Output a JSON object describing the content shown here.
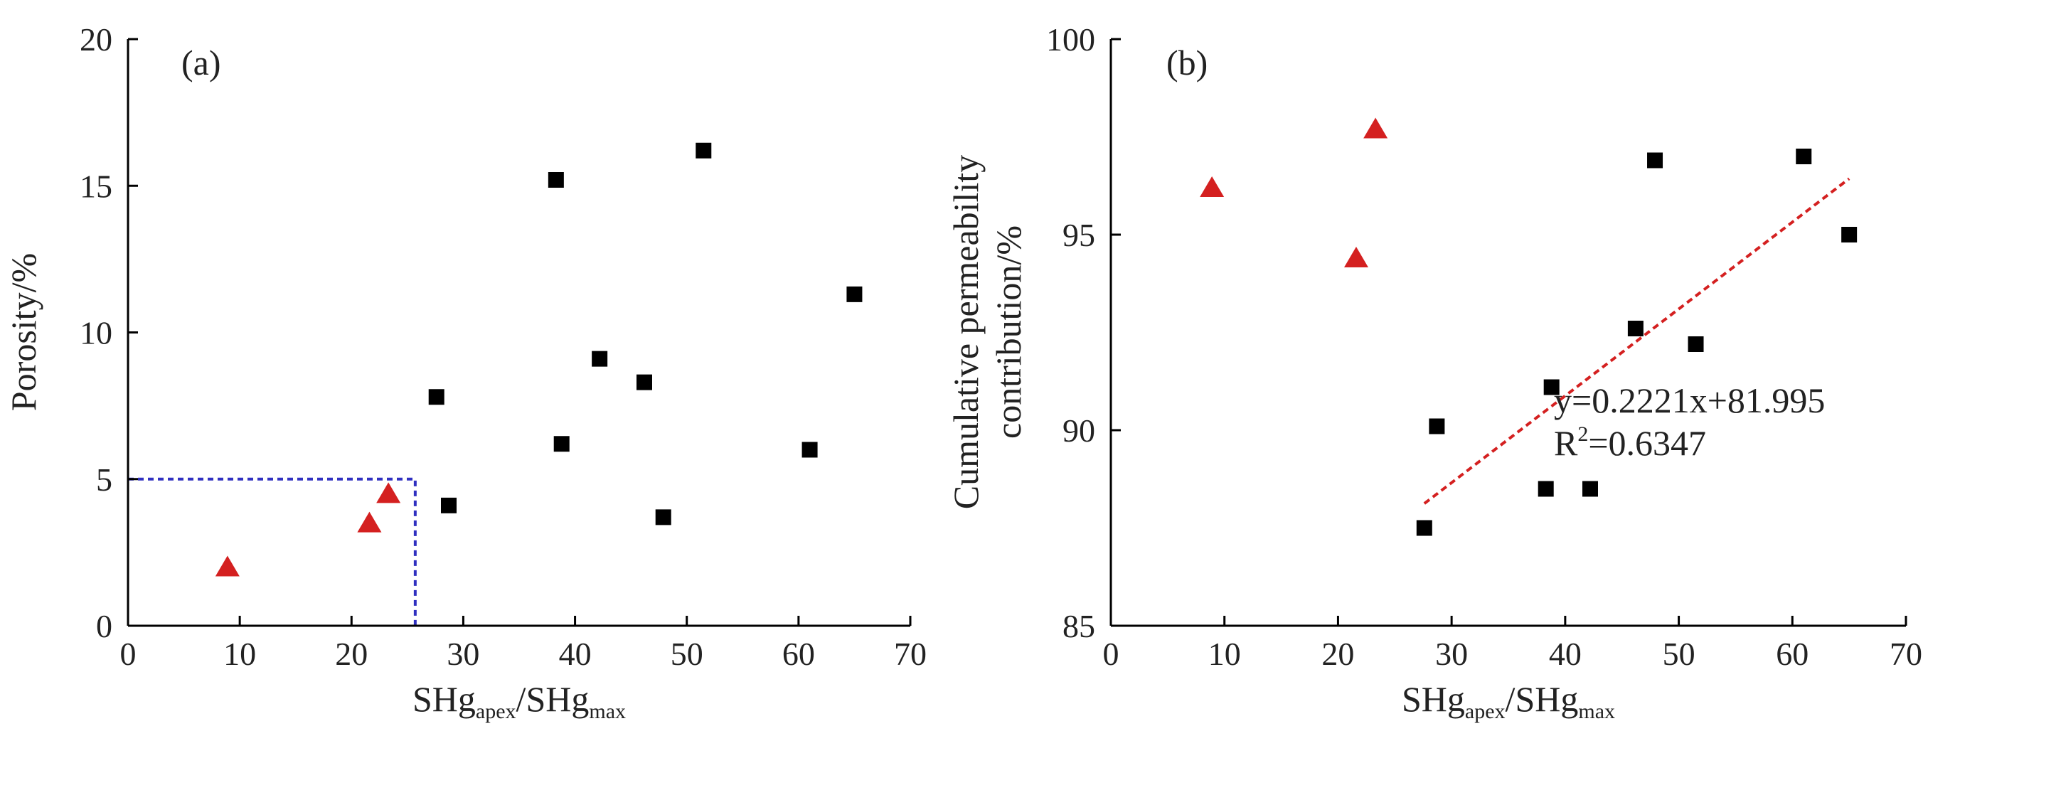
{
  "colors": {
    "square": "#000000",
    "triangle": "#d42020",
    "trendline": "#d42020",
    "cutoff": "#3030c0"
  },
  "chart_data": [
    {
      "type": "scatter",
      "panel_label": "(a)",
      "xlabel": {
        "main": "SHg",
        "sub1": "apex",
        "sep": "/SHg",
        "sub2": "max"
      },
      "ylabel": "Porosity/%",
      "xlim": [
        0,
        70
      ],
      "ylim": [
        0,
        20
      ],
      "xticks": [
        0,
        10,
        20,
        30,
        40,
        50,
        60,
        70
      ],
      "yticks": [
        0,
        5,
        10,
        15,
        20
      ],
      "series": [
        {
          "marker": "square",
          "x": [
            27.6,
            28.7,
            38.3,
            38.8,
            42.2,
            46.2,
            47.9,
            51.5,
            61.0,
            65.0
          ],
          "y": [
            7.8,
            4.1,
            15.2,
            6.2,
            9.1,
            8.3,
            3.7,
            16.2,
            6.0,
            11.3
          ]
        },
        {
          "marker": "triangle",
          "x": [
            8.9,
            21.6,
            23.3
          ],
          "y": [
            2.0,
            3.5,
            4.5
          ]
        }
      ],
      "cutoff_lines": {
        "x": 25.7,
        "y": 5
      }
    },
    {
      "type": "scatter",
      "panel_label": "(b)",
      "xlabel": {
        "main": "SHg",
        "sub1": "apex",
        "sep": "/SHg",
        "sub2": "max"
      },
      "ylabel_line1": "Cumulative permeability",
      "ylabel_line2": "contribution/%",
      "xlim": [
        0,
        70
      ],
      "ylim": [
        85,
        100
      ],
      "xticks": [
        0,
        10,
        20,
        30,
        40,
        50,
        60,
        70
      ],
      "yticks": [
        85,
        90,
        95,
        100
      ],
      "series": [
        {
          "marker": "square",
          "x": [
            27.6,
            28.7,
            38.3,
            38.8,
            42.2,
            46.2,
            47.9,
            51.5,
            61.0,
            65.0
          ],
          "y": [
            87.5,
            90.1,
            88.5,
            91.1,
            88.5,
            92.6,
            96.9,
            92.2,
            97.0,
            95.0
          ]
        },
        {
          "marker": "triangle",
          "x": [
            8.9,
            21.6,
            23.3
          ],
          "y": [
            96.2,
            94.4,
            97.7
          ]
        }
      ],
      "trendline": {
        "slope": 0.2221,
        "intercept": 81.995,
        "x_range": [
          27.6,
          65.0
        ]
      },
      "equation": "y=0.2221x+81.995",
      "r2": {
        "prefix": "R",
        "sup": "2",
        "value": "=0.6347"
      }
    }
  ]
}
